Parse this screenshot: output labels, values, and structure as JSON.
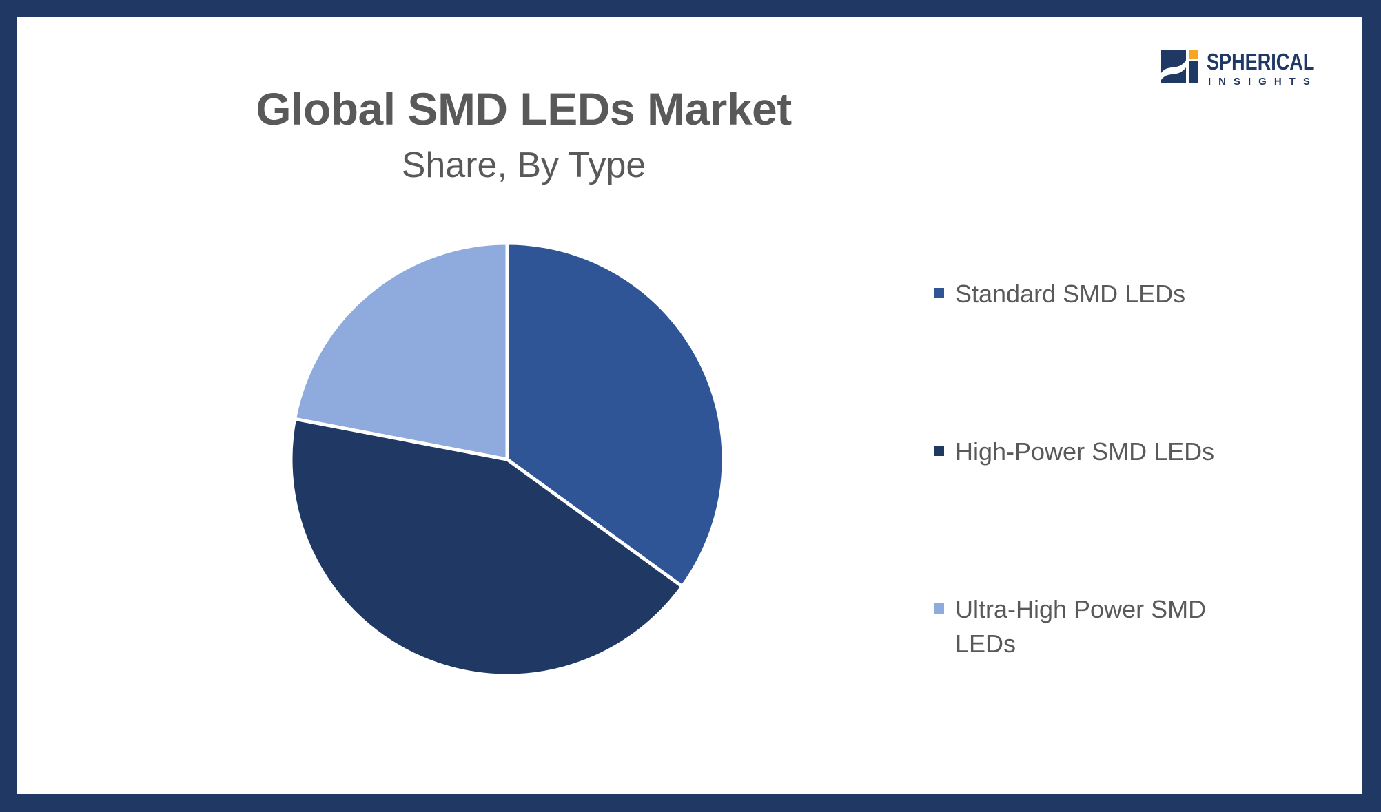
{
  "brand": {
    "name": "SPHERICAL",
    "tagline": "INSIGHTS",
    "logo_icon": "spherical-insights-logo",
    "colors": {
      "navy": "#1f3864",
      "accent": "#f5a623"
    }
  },
  "colors": {
    "frame": "#1f3864",
    "background": "#ffffff",
    "text": "#595959"
  },
  "chart_data": {
    "type": "pie",
    "title": "Global SMD LEDs Market",
    "subtitle": "Share, By Type",
    "legend_position": "right",
    "series": [
      {
        "categories": [
          "Standard SMD LEDs",
          "High-Power SMD LEDs",
          "Ultra-High Power SMD LEDs"
        ],
        "values": [
          35,
          43,
          22
        ],
        "unit": "%",
        "colors": [
          "#2f5597",
          "#203864",
          "#8faadc"
        ]
      }
    ]
  }
}
